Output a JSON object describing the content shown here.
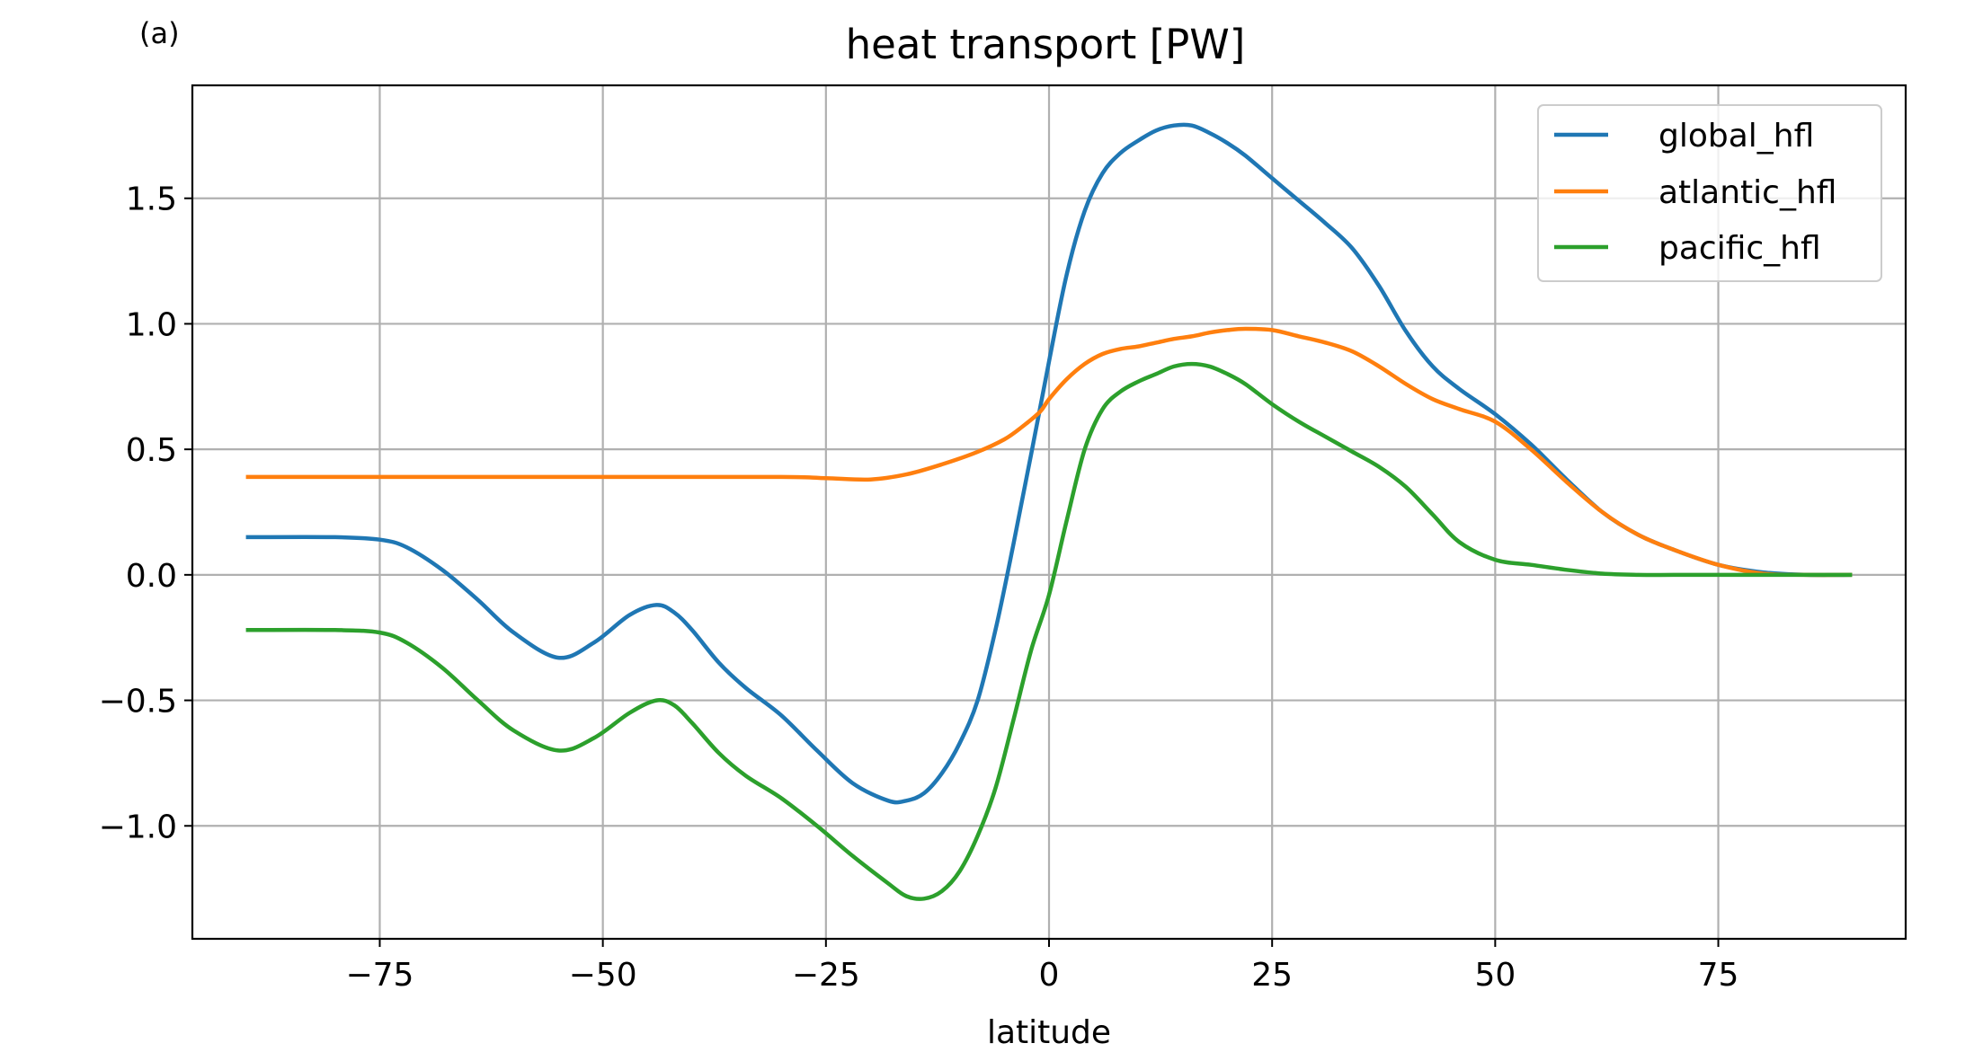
{
  "panel_label": "(a)",
  "chart_data": {
    "type": "line",
    "title": "heat transport [PW]",
    "xlabel": "latitude",
    "ylabel": "",
    "xlim": [
      -96,
      96
    ],
    "ylim": [
      -1.45,
      1.95
    ],
    "xticks": [
      -75,
      -50,
      -25,
      0,
      25,
      50,
      75
    ],
    "xtick_labels": [
      "−75",
      "−50",
      "−25",
      "0",
      "25",
      "50",
      "75"
    ],
    "yticks": [
      -1.0,
      -0.5,
      0.0,
      0.5,
      1.0,
      1.5
    ],
    "ytick_labels": [
      "−1.0",
      "−0.5",
      "0.0",
      "0.5",
      "1.0",
      "1.5"
    ],
    "grid": true,
    "legend_position": "top-right",
    "series": [
      {
        "name": "global_hfl",
        "color": "#1f77b4",
        "x": [
          -90,
          -80,
          -75,
          -72,
          -68,
          -64,
          -60,
          -55,
          -51,
          -47,
          -44,
          -42,
          -40,
          -37,
          -34,
          -30,
          -26,
          -22,
          -18,
          -16,
          -14,
          -12,
          -10,
          -8,
          -6,
          -4,
          -2,
          0,
          2,
          4,
          6,
          8,
          10,
          12,
          14,
          16,
          18,
          20,
          22,
          25,
          28,
          31,
          34,
          37,
          40,
          43,
          46,
          50,
          54,
          58,
          62,
          66,
          70,
          75,
          80,
          85,
          90
        ],
        "y": [
          0.15,
          0.15,
          0.14,
          0.11,
          0.02,
          -0.1,
          -0.23,
          -0.33,
          -0.27,
          -0.16,
          -0.12,
          -0.15,
          -0.22,
          -0.35,
          -0.45,
          -0.56,
          -0.7,
          -0.83,
          -0.9,
          -0.9,
          -0.87,
          -0.79,
          -0.67,
          -0.5,
          -0.22,
          0.12,
          0.48,
          0.85,
          1.2,
          1.45,
          1.6,
          1.68,
          1.73,
          1.77,
          1.79,
          1.79,
          1.76,
          1.72,
          1.67,
          1.58,
          1.49,
          1.4,
          1.3,
          1.15,
          0.97,
          0.83,
          0.74,
          0.64,
          0.52,
          0.38,
          0.25,
          0.16,
          0.1,
          0.04,
          0.01,
          0.0,
          0.0
        ]
      },
      {
        "name": "atlantic_hfl",
        "color": "#ff7f0e",
        "x": [
          -90,
          -75,
          -50,
          -30,
          -25,
          -20,
          -16,
          -12,
          -8,
          -5,
          -3,
          -1,
          0,
          2,
          4,
          6,
          8,
          10,
          12,
          14,
          16,
          18,
          20,
          22,
          25,
          28,
          31,
          34,
          37,
          40,
          43,
          46,
          50,
          54,
          58,
          62,
          66,
          70,
          75,
          80,
          85,
          90
        ],
        "y": [
          0.39,
          0.39,
          0.39,
          0.39,
          0.385,
          0.38,
          0.4,
          0.44,
          0.49,
          0.54,
          0.59,
          0.65,
          0.7,
          0.78,
          0.84,
          0.88,
          0.9,
          0.91,
          0.925,
          0.94,
          0.95,
          0.965,
          0.975,
          0.98,
          0.975,
          0.95,
          0.925,
          0.89,
          0.83,
          0.76,
          0.7,
          0.66,
          0.61,
          0.5,
          0.37,
          0.25,
          0.16,
          0.1,
          0.04,
          0.005,
          0.0,
          0.0
        ]
      },
      {
        "name": "pacific_hfl",
        "color": "#2ca02c",
        "x": [
          -90,
          -80,
          -75,
          -72,
          -68,
          -64,
          -60,
          -55,
          -51,
          -47,
          -44,
          -42,
          -40,
          -37,
          -34,
          -30,
          -26,
          -22,
          -18,
          -16,
          -14,
          -12,
          -10,
          -8,
          -6,
          -4,
          -2,
          0,
          2,
          4,
          6,
          8,
          10,
          12,
          14,
          16,
          18,
          20,
          22,
          25,
          28,
          31,
          34,
          37,
          40,
          43,
          46,
          50,
          54,
          58,
          62,
          66,
          70,
          75,
          80,
          85,
          90
        ],
        "y": [
          -0.22,
          -0.22,
          -0.23,
          -0.27,
          -0.37,
          -0.5,
          -0.62,
          -0.7,
          -0.65,
          -0.55,
          -0.5,
          -0.52,
          -0.59,
          -0.71,
          -0.8,
          -0.89,
          -1.0,
          -1.12,
          -1.23,
          -1.28,
          -1.29,
          -1.26,
          -1.18,
          -1.04,
          -0.85,
          -0.58,
          -0.3,
          -0.08,
          0.22,
          0.5,
          0.66,
          0.73,
          0.77,
          0.8,
          0.83,
          0.84,
          0.83,
          0.8,
          0.76,
          0.68,
          0.61,
          0.55,
          0.49,
          0.43,
          0.35,
          0.24,
          0.13,
          0.06,
          0.04,
          0.02,
          0.005,
          0.0,
          0.0,
          0.0,
          0.0,
          0.0,
          0.0
        ]
      }
    ]
  }
}
